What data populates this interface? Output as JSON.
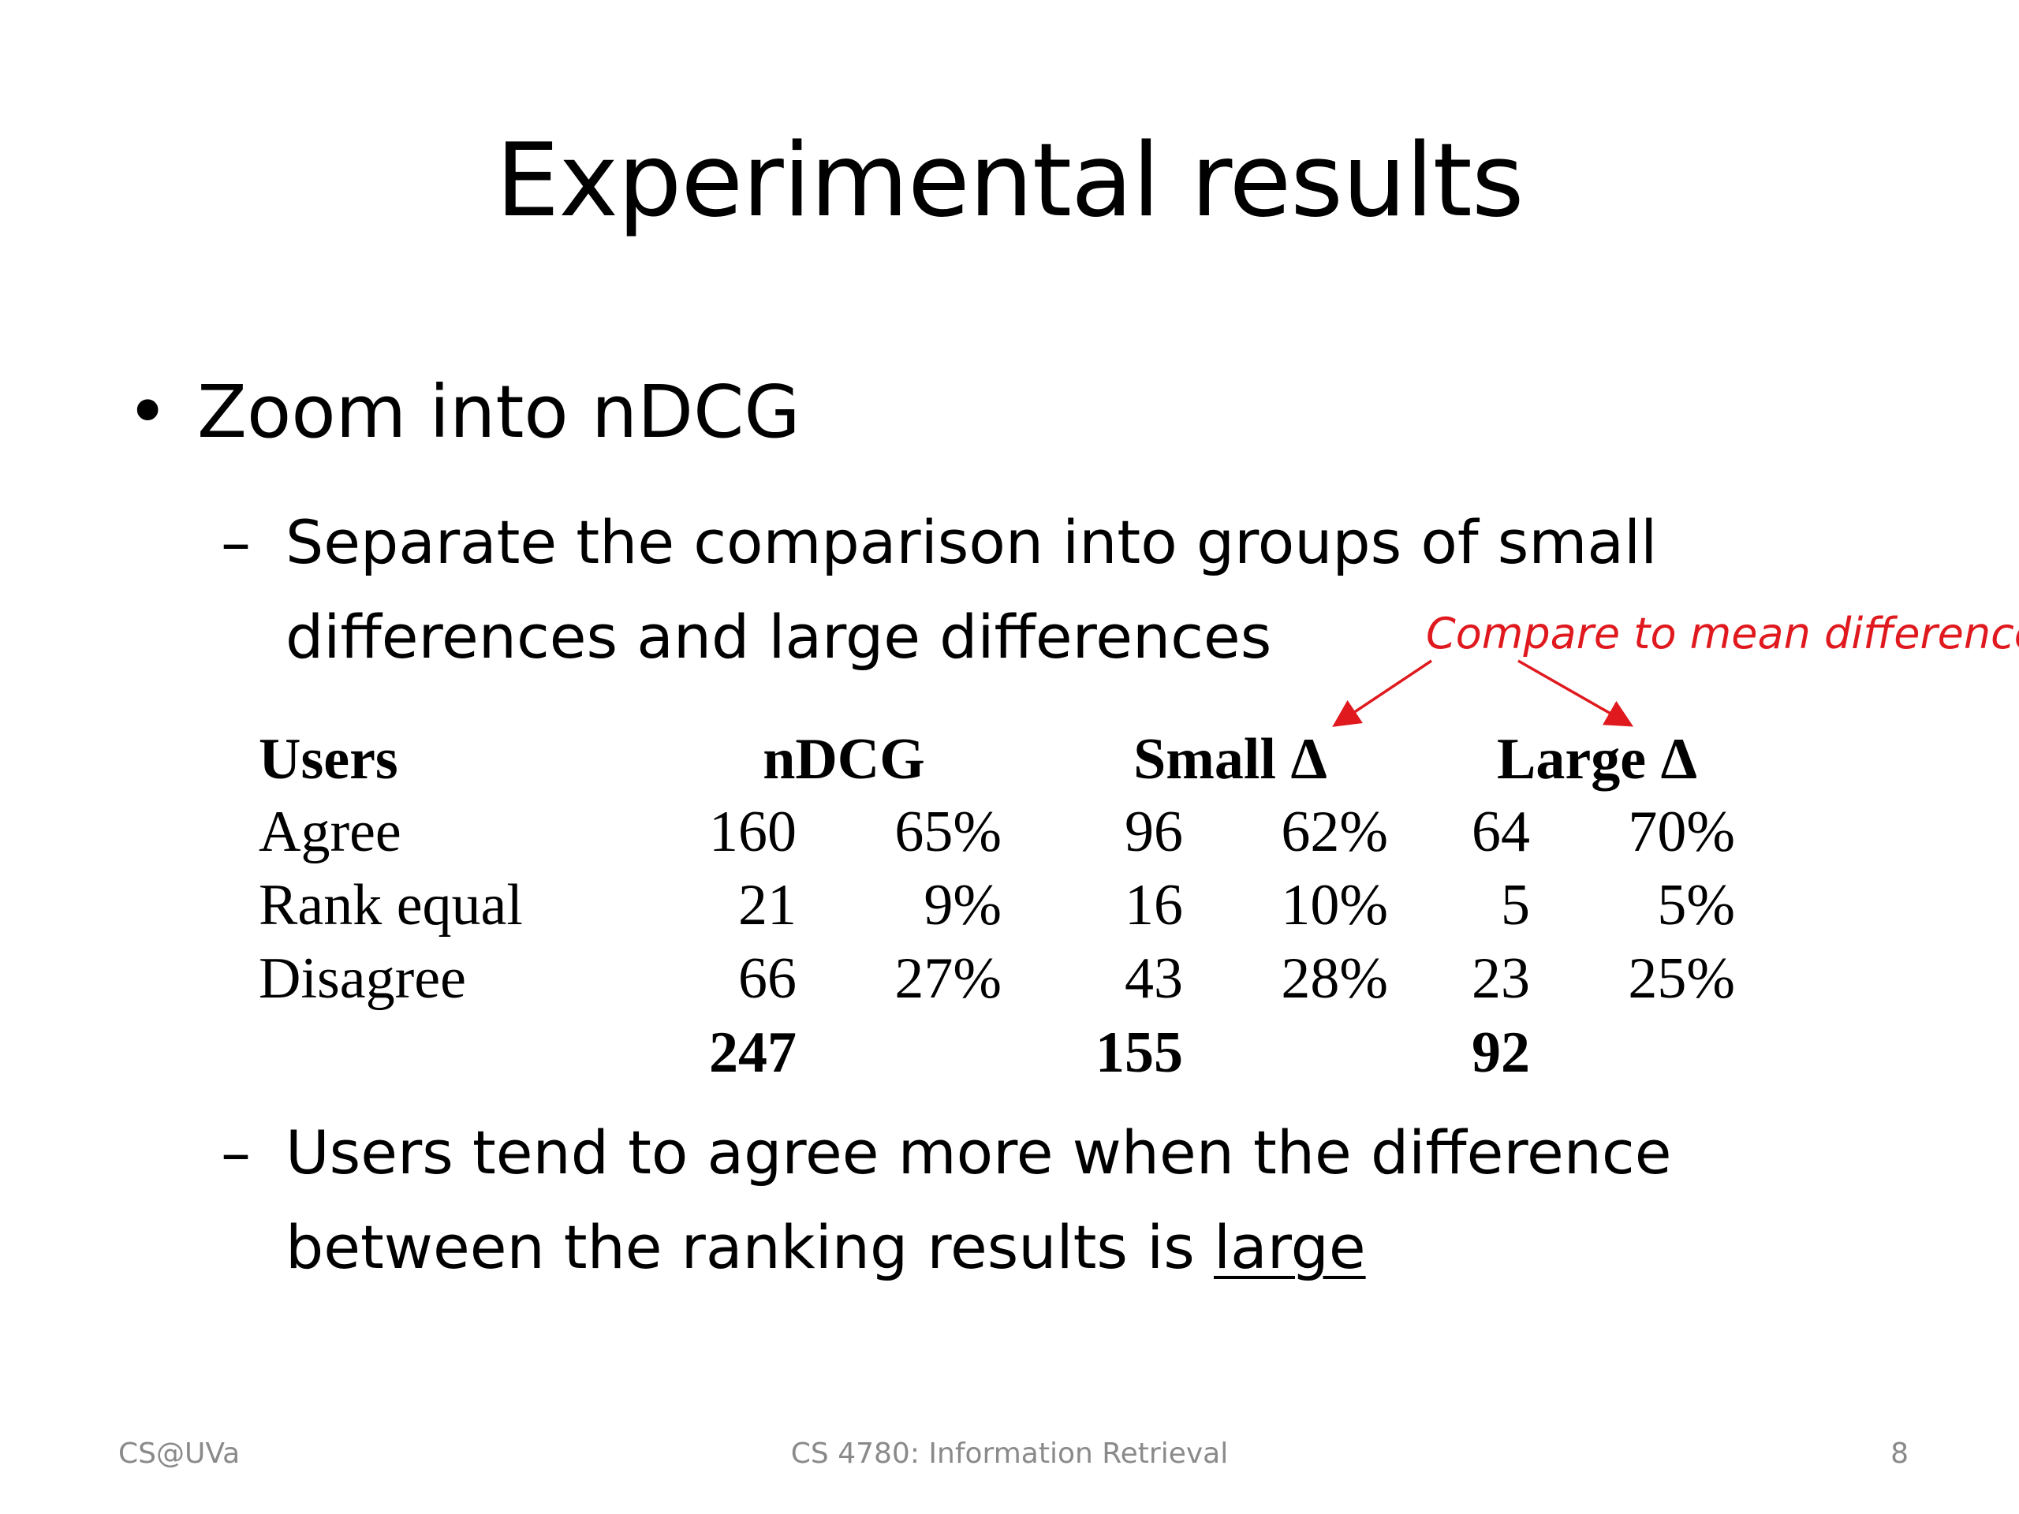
{
  "title": "Experimental results",
  "bullet": {
    "symbol": "•",
    "text": "Zoom into nDCG"
  },
  "sub1": {
    "dash": "–",
    "line1": "Separate the comparison into groups of small",
    "line2": "differences and large differences"
  },
  "annotation": {
    "text": "Compare to mean difference",
    "color": "#e0191e"
  },
  "table": {
    "headers": {
      "users": "Users",
      "ndcg": "nDCG",
      "small": "Small Δ",
      "large": "Large Δ"
    },
    "rows": [
      {
        "label": "Agree",
        "ndcg_n": "160",
        "ndcg_p": "65%",
        "small_n": "96",
        "small_p": "62%",
        "large_n": "64",
        "large_p": "70%"
      },
      {
        "label": "Rank equal",
        "ndcg_n": "21",
        "ndcg_p": "9%",
        "small_n": "16",
        "small_p": "10%",
        "large_n": "5",
        "large_p": "5%"
      },
      {
        "label": "Disagree",
        "ndcg_n": "66",
        "ndcg_p": "27%",
        "small_n": "43",
        "small_p": "28%",
        "large_n": "23",
        "large_p": "25%"
      }
    ],
    "totals": {
      "ndcg": "247",
      "small": "155",
      "large": "92"
    }
  },
  "sub2": {
    "dash": "–",
    "line1": "Users tend to agree more when the difference",
    "line2_prefix": "between the ranking results is ",
    "line2_emph": "large"
  },
  "footer": {
    "left": "CS@UVa",
    "center": "CS 4780: Information Retrieval",
    "right": "8"
  }
}
